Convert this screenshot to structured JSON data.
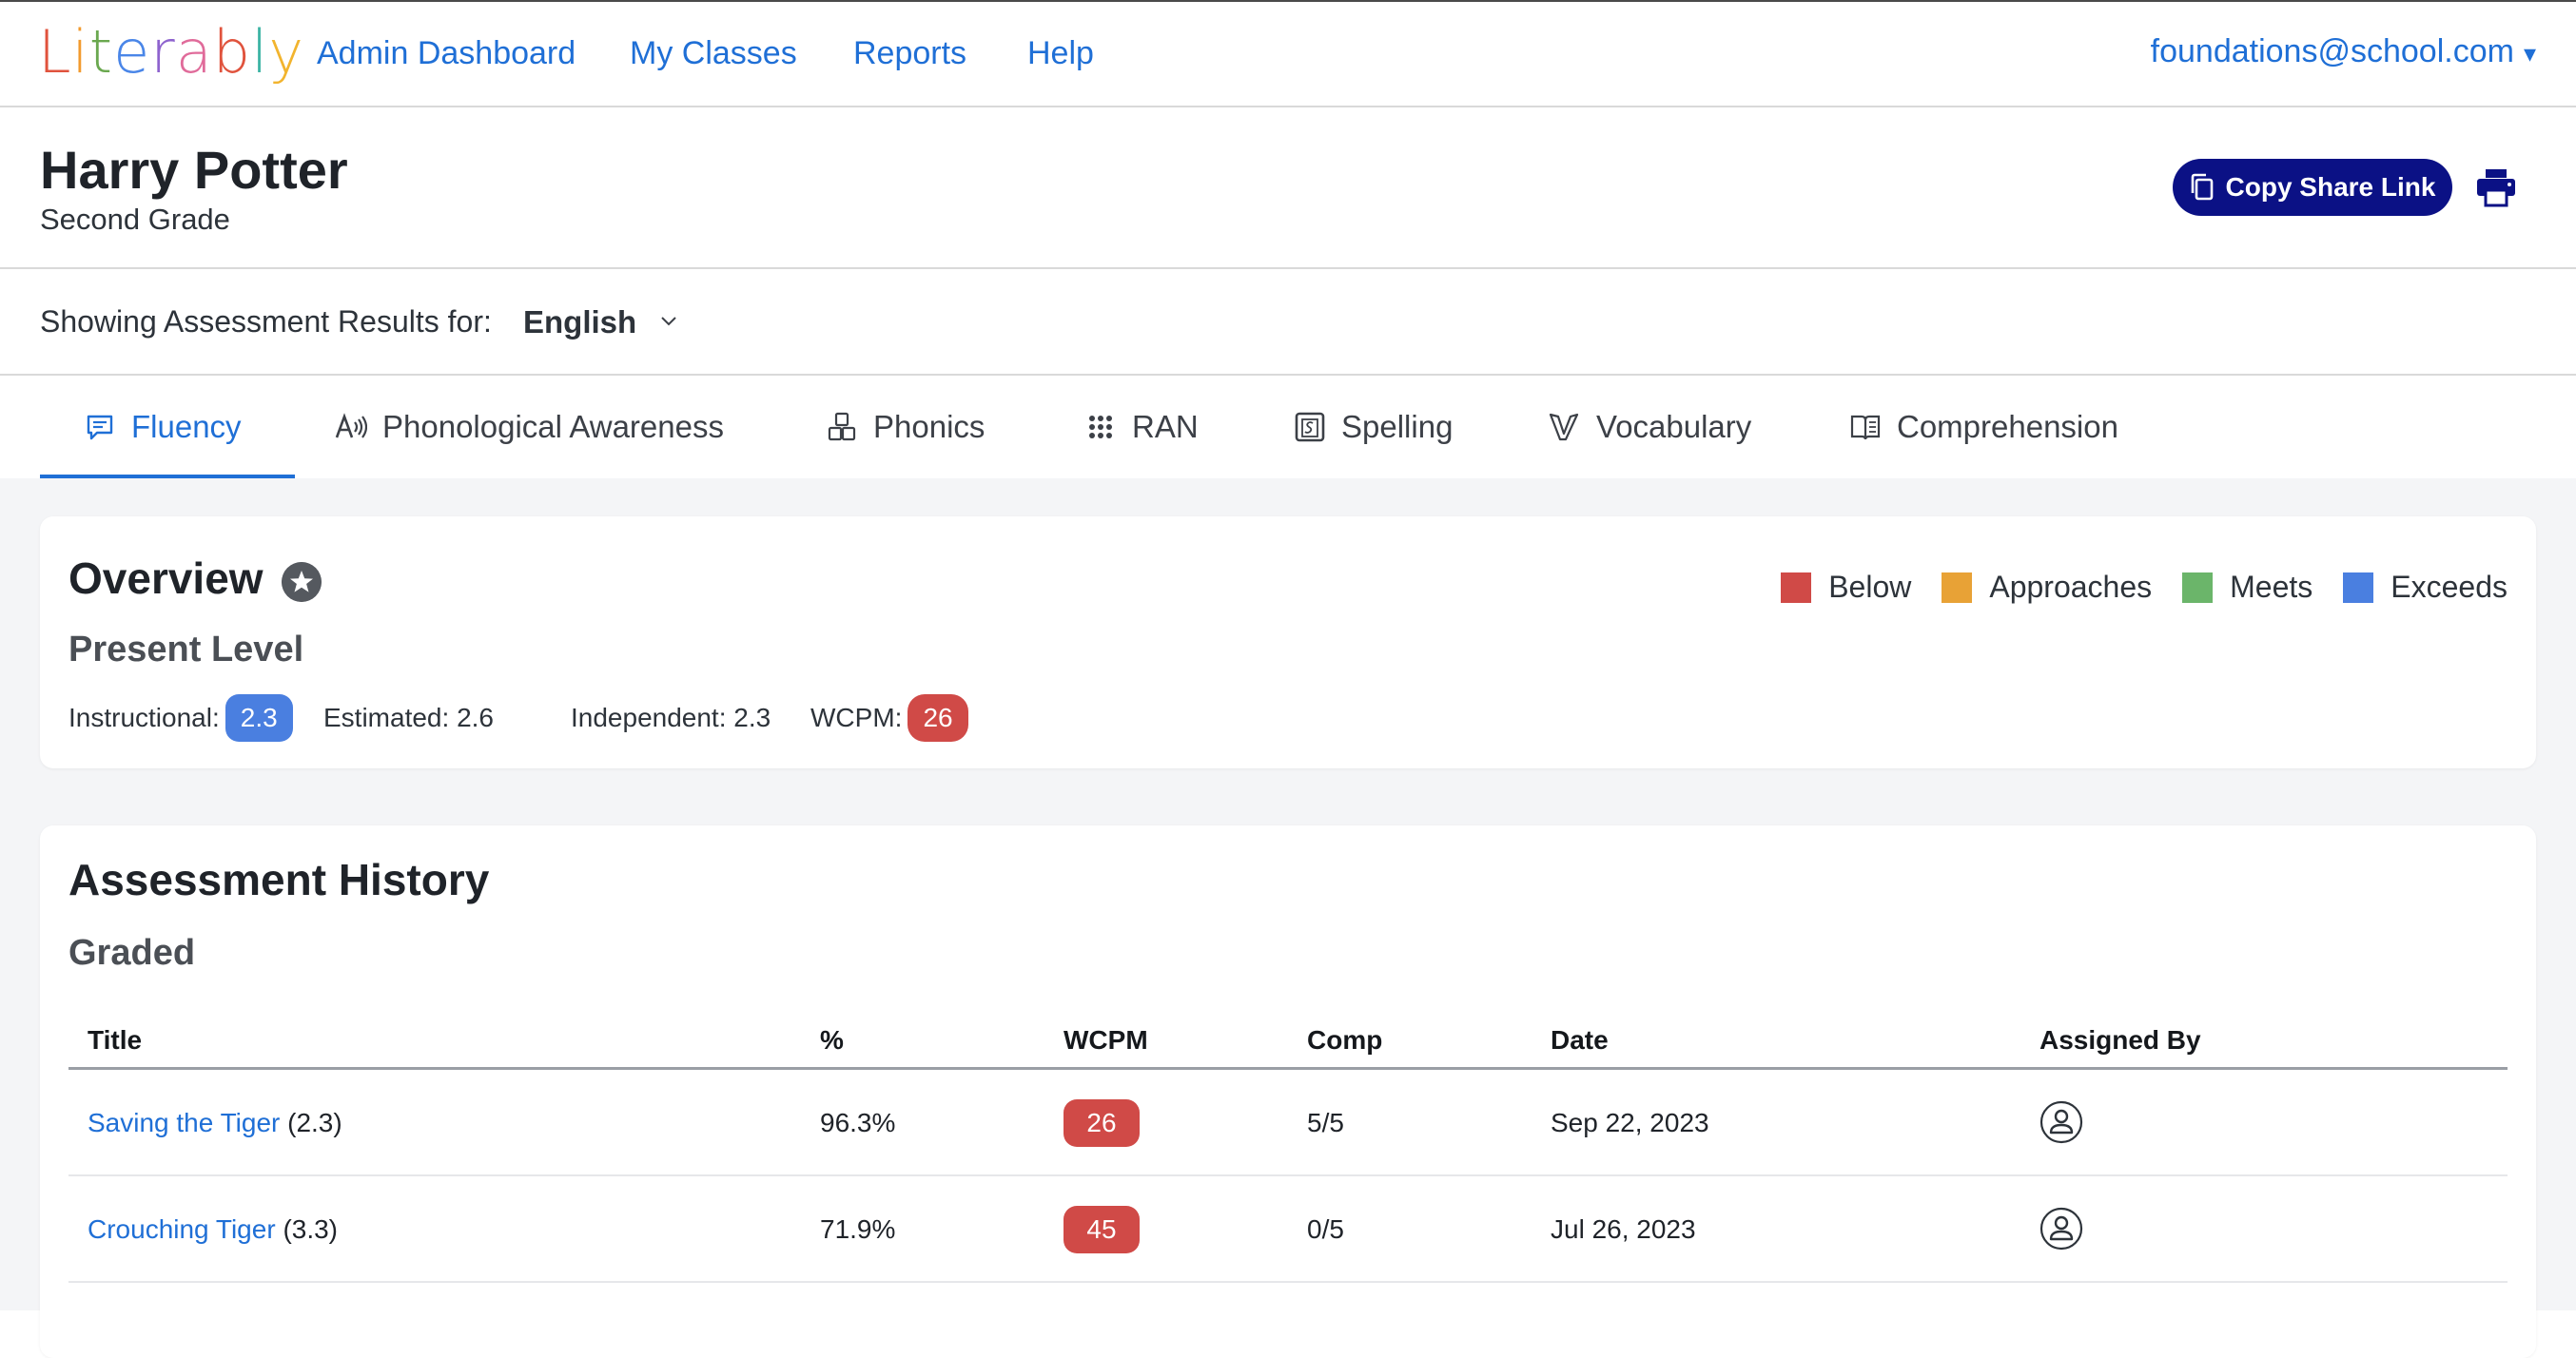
{
  "app": {
    "logo_letters": [
      {
        "char": "L",
        "color": "#e0533d"
      },
      {
        "char": "i",
        "color": "#f29a2e"
      },
      {
        "char": "t",
        "color": "#6aa84f"
      },
      {
        "char": "e",
        "color": "#4a86e8"
      },
      {
        "char": "r",
        "color": "#8e63ce"
      },
      {
        "char": "a",
        "color": "#e06b9a"
      },
      {
        "char": "b",
        "color": "#e0533d"
      },
      {
        "char": "l",
        "color": "#3cb4a4"
      },
      {
        "char": "y",
        "color": "#f2b42e"
      }
    ]
  },
  "nav": {
    "items": [
      {
        "label": "Admin Dashboard"
      },
      {
        "label": "My Classes"
      },
      {
        "label": "Reports"
      },
      {
        "label": "Help"
      }
    ],
    "account": "foundations@school.com",
    "account_caret": "▾"
  },
  "student": {
    "name": "Harry Potter",
    "grade": "Second Grade",
    "share_label": "Copy Share Link"
  },
  "language": {
    "label": "Showing Assessment Results for:",
    "value": "English"
  },
  "tabs": [
    {
      "label": "Fluency",
      "icon": "chat-icon",
      "active": true
    },
    {
      "label": "Phonological Awareness",
      "icon": "phonological-icon",
      "active": false
    },
    {
      "label": "Phonics",
      "icon": "blocks-icon",
      "active": false
    },
    {
      "label": "RAN",
      "icon": "grid-dots-icon",
      "active": false
    },
    {
      "label": "Spelling",
      "icon": "spelling-icon",
      "active": false
    },
    {
      "label": "Vocabulary",
      "icon": "vocabulary-icon",
      "active": false
    },
    {
      "label": "Comprehension",
      "icon": "book-icon",
      "active": false
    }
  ],
  "overview": {
    "title": "Overview",
    "present_level_label": "Present Level",
    "legend": [
      {
        "label": "Below",
        "color": "#d04a47"
      },
      {
        "label": "Approaches",
        "color": "#e8a236"
      },
      {
        "label": "Meets",
        "color": "#6bb56a"
      },
      {
        "label": "Exceeds",
        "color": "#4a7fe0"
      }
    ],
    "levels": {
      "instructional_label": "Instructional:",
      "instructional_value": "2.3",
      "instructional_color": "#4a7fe0",
      "estimated_label": "Estimated:",
      "estimated_value": "2.6",
      "independent_label": "Independent:",
      "independent_value": "2.3",
      "wcpm_label": "WCPM:",
      "wcpm_value": "26",
      "wcpm_color": "#d04a47"
    }
  },
  "history": {
    "title": "Assessment History",
    "section": "Graded",
    "columns": [
      "Title",
      "%",
      "WCPM",
      "Comp",
      "Date",
      "Assigned By"
    ],
    "rows": [
      {
        "title": "Saving the Tiger",
        "level": "(2.3)",
        "percent": "96.3%",
        "wcpm": "26",
        "wcpm_color": "#d04a47",
        "comp": "5/5",
        "date": "Sep 22, 2023",
        "assigned_by_icon": "user-icon"
      },
      {
        "title": "Crouching Tiger",
        "level": "(3.3)",
        "percent": "71.9%",
        "wcpm": "45",
        "wcpm_color": "#d04a47",
        "comp": "0/5",
        "date": "Jul 26, 2023",
        "assigned_by_icon": "user-icon"
      }
    ]
  }
}
